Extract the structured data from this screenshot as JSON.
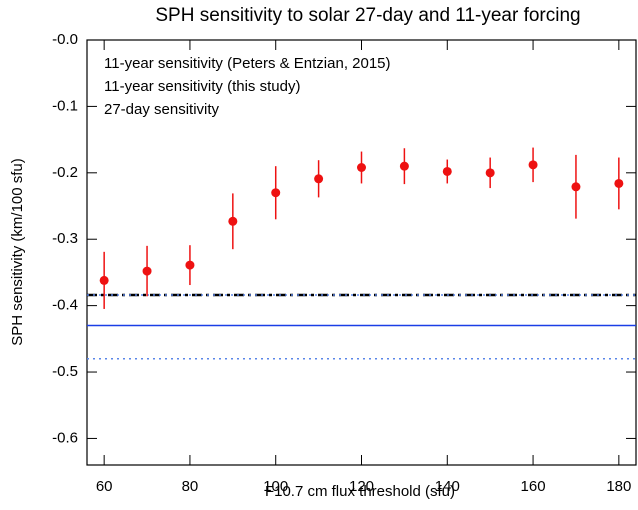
{
  "chart_data": {
    "type": "errorbar",
    "title": "SPH sensitivity to solar 27-day and 11-year forcing",
    "xlabel": "F10.7 cm flux threshold (sfu)",
    "ylabel": "SPH sensitivity (km/100 sfu)",
    "xlim": [
      56,
      184
    ],
    "xticks": [
      60,
      80,
      100,
      120,
      140,
      160,
      180
    ],
    "ylim": [
      -0.64,
      0
    ],
    "yticks": [
      {
        "value": 0,
        "label": "-0.0"
      },
      -0.1,
      -0.2,
      -0.3,
      -0.4,
      -0.5,
      -0.6
    ],
    "series": [
      {
        "name": "27-day sensitivity",
        "color": "#ee1111",
        "x": [
          60,
          70,
          80,
          90,
          100,
          110,
          120,
          130,
          140,
          150,
          160,
          170,
          180
        ],
        "values": [
          -0.362,
          -0.348,
          -0.339,
          -0.273,
          -0.23,
          -0.209,
          -0.192,
          -0.19,
          -0.198,
          -0.2,
          -0.188,
          -0.221,
          -0.216
        ],
        "errors": [
          0.043,
          0.038,
          0.03,
          0.042,
          0.04,
          0.028,
          0.024,
          0.027,
          0.018,
          0.023,
          0.026,
          0.048,
          0.039
        ]
      }
    ],
    "hlines": [
      {
        "name": "11-year sensitivity (Peters & Entzian, 2015)",
        "color": "#000000",
        "value": -0.384,
        "style": "dashdot"
      },
      {
        "name": "11-year sensitivity (this study)",
        "color": "#1a3ee6",
        "value": -0.43,
        "style": "solid",
        "band": [
          -0.48,
          -0.384
        ],
        "band_color": "#5a86e8"
      }
    ],
    "legend_order": [
      0,
      1
    ]
  }
}
